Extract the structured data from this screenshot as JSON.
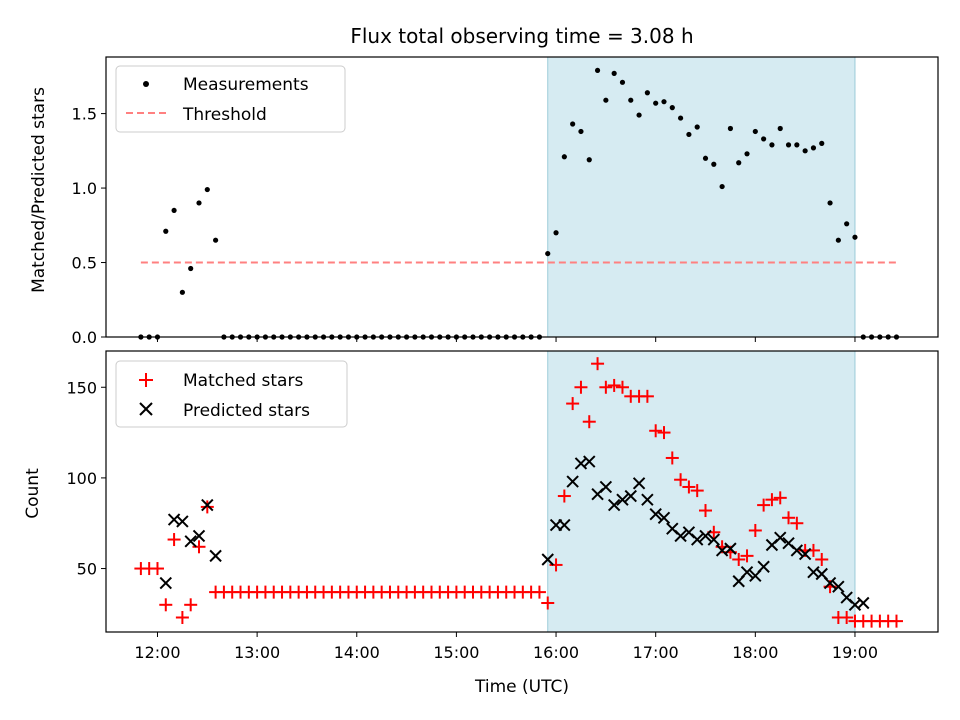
{
  "title": "Flux total observing time = 3.08 h",
  "colors": {
    "measurements": "#000000",
    "threshold": "#ff8080",
    "matched": "#ff0000",
    "predicted": "#000000",
    "observing_span": "#add8e6"
  },
  "chart_data": [
    {
      "type": "scatter",
      "ylabel": "Matched/Predicted stars",
      "xlim": [
        "11:29",
        "19:50"
      ],
      "ylim": [
        0,
        1.88
      ],
      "yticks": [
        "0.0",
        "0.5",
        "1.0",
        "1.5"
      ],
      "grid": false,
      "legend_position": "top-left",
      "observing_span": [
        "15:55",
        "19:00"
      ],
      "threshold": {
        "name": "Threshold",
        "y": 0.5,
        "x_range": [
          "11:50",
          "19:25"
        ]
      },
      "series": [
        {
          "name": "Measurements",
          "points": [
            [
              "11:50",
              0
            ],
            [
              "11:55",
              0
            ],
            [
              "12:00",
              0
            ],
            [
              "12:05",
              0.71
            ],
            [
              "12:10",
              0.85
            ],
            [
              "12:15",
              0.3
            ],
            [
              "12:20",
              0.46
            ],
            [
              "12:25",
              0.9
            ],
            [
              "12:30",
              0.99
            ],
            [
              "12:35",
              0.65
            ],
            [
              "12:40",
              0
            ],
            [
              "12:45",
              0
            ],
            [
              "12:50",
              0
            ],
            [
              "12:55",
              0
            ],
            [
              "13:00",
              0
            ],
            [
              "13:05",
              0
            ],
            [
              "13:10",
              0
            ],
            [
              "13:15",
              0
            ],
            [
              "13:20",
              0
            ],
            [
              "13:25",
              0
            ],
            [
              "13:30",
              0
            ],
            [
              "13:35",
              0
            ],
            [
              "13:40",
              0
            ],
            [
              "13:45",
              0
            ],
            [
              "13:50",
              0
            ],
            [
              "13:55",
              0
            ],
            [
              "14:00",
              0
            ],
            [
              "14:05",
              0
            ],
            [
              "14:10",
              0
            ],
            [
              "14:15",
              0
            ],
            [
              "14:20",
              0
            ],
            [
              "14:25",
              0
            ],
            [
              "14:30",
              0
            ],
            [
              "14:35",
              0
            ],
            [
              "14:40",
              0
            ],
            [
              "14:45",
              0
            ],
            [
              "14:50",
              0
            ],
            [
              "14:55",
              0
            ],
            [
              "15:00",
              0
            ],
            [
              "15:05",
              0
            ],
            [
              "15:10",
              0
            ],
            [
              "15:15",
              0
            ],
            [
              "15:20",
              0
            ],
            [
              "15:25",
              0
            ],
            [
              "15:30",
              0
            ],
            [
              "15:35",
              0
            ],
            [
              "15:40",
              0
            ],
            [
              "15:45",
              0
            ],
            [
              "15:50",
              0
            ],
            [
              "15:55",
              0.56
            ],
            [
              "16:00",
              0.7
            ],
            [
              "16:05",
              1.21
            ],
            [
              "16:10",
              1.43
            ],
            [
              "16:15",
              1.38
            ],
            [
              "16:20",
              1.19
            ],
            [
              "16:25",
              1.79
            ],
            [
              "16:30",
              1.59
            ],
            [
              "16:35",
              1.77
            ],
            [
              "16:40",
              1.71
            ],
            [
              "16:45",
              1.59
            ],
            [
              "16:50",
              1.49
            ],
            [
              "16:55",
              1.64
            ],
            [
              "17:00",
              1.57
            ],
            [
              "17:05",
              1.58
            ],
            [
              "17:10",
              1.54
            ],
            [
              "17:15",
              1.47
            ],
            [
              "17:20",
              1.36
            ],
            [
              "17:25",
              1.41
            ],
            [
              "17:30",
              1.2
            ],
            [
              "17:35",
              1.16
            ],
            [
              "17:40",
              1.01
            ],
            [
              "17:45",
              1.4
            ],
            [
              "17:50",
              1.17
            ],
            [
              "17:55",
              1.23
            ],
            [
              "18:00",
              1.38
            ],
            [
              "18:05",
              1.33
            ],
            [
              "18:10",
              1.29
            ],
            [
              "18:15",
              1.4
            ],
            [
              "18:20",
              1.29
            ],
            [
              "18:25",
              1.29
            ],
            [
              "18:30",
              1.25
            ],
            [
              "18:35",
              1.27
            ],
            [
              "18:40",
              1.3
            ],
            [
              "18:45",
              0.9
            ],
            [
              "18:50",
              0.65
            ],
            [
              "18:55",
              0.76
            ],
            [
              "19:00",
              0.67
            ],
            [
              "19:05",
              0
            ],
            [
              "19:10",
              0
            ],
            [
              "19:15",
              0
            ],
            [
              "19:20",
              0
            ],
            [
              "19:25",
              0
            ]
          ]
        }
      ]
    },
    {
      "type": "scatter",
      "ylabel": "Count",
      "xlabel": "Time (UTC)",
      "xlim": [
        "11:29",
        "19:50"
      ],
      "ylim": [
        15,
        170
      ],
      "yticks": [
        "50",
        "100",
        "150"
      ],
      "xticks": [
        "12:00",
        "13:00",
        "14:00",
        "15:00",
        "16:00",
        "17:00",
        "18:00",
        "19:00"
      ],
      "grid": false,
      "legend_position": "top-left",
      "observing_span": [
        "15:55",
        "19:00"
      ],
      "series": [
        {
          "name": "Matched stars",
          "marker": "+",
          "points": [
            [
              "11:50",
              50
            ],
            [
              "11:55",
              50
            ],
            [
              "12:00",
              50
            ],
            [
              "12:05",
              30
            ],
            [
              "12:10",
              66
            ],
            [
              "12:15",
              23
            ],
            [
              "12:20",
              30
            ],
            [
              "12:25",
              62
            ],
            [
              "12:30",
              84
            ],
            [
              "12:35",
              37
            ],
            [
              "12:40",
              37
            ],
            [
              "12:45",
              37
            ],
            [
              "12:50",
              37
            ],
            [
              "12:55",
              37
            ],
            [
              "13:00",
              37
            ],
            [
              "13:05",
              37
            ],
            [
              "13:10",
              37
            ],
            [
              "13:15",
              37
            ],
            [
              "13:20",
              37
            ],
            [
              "13:25",
              37
            ],
            [
              "13:30",
              37
            ],
            [
              "13:35",
              37
            ],
            [
              "13:40",
              37
            ],
            [
              "13:45",
              37
            ],
            [
              "13:50",
              37
            ],
            [
              "13:55",
              37
            ],
            [
              "14:00",
              37
            ],
            [
              "14:05",
              37
            ],
            [
              "14:10",
              37
            ],
            [
              "14:15",
              37
            ],
            [
              "14:20",
              37
            ],
            [
              "14:25",
              37
            ],
            [
              "14:30",
              37
            ],
            [
              "14:35",
              37
            ],
            [
              "14:40",
              37
            ],
            [
              "14:45",
              37
            ],
            [
              "14:50",
              37
            ],
            [
              "14:55",
              37
            ],
            [
              "15:00",
              37
            ],
            [
              "15:05",
              37
            ],
            [
              "15:10",
              37
            ],
            [
              "15:15",
              37
            ],
            [
              "15:20",
              37
            ],
            [
              "15:25",
              37
            ],
            [
              "15:30",
              37
            ],
            [
              "15:35",
              37
            ],
            [
              "15:40",
              37
            ],
            [
              "15:45",
              37
            ],
            [
              "15:50",
              37
            ],
            [
              "15:55",
              31
            ],
            [
              "16:00",
              52
            ],
            [
              "16:05",
              90
            ],
            [
              "16:10",
              141
            ],
            [
              "16:15",
              150
            ],
            [
              "16:20",
              131
            ],
            [
              "16:25",
              163
            ],
            [
              "16:30",
              150
            ],
            [
              "16:35",
              151
            ],
            [
              "16:40",
              150
            ],
            [
              "16:45",
              145
            ],
            [
              "16:50",
              145
            ],
            [
              "16:55",
              145
            ],
            [
              "17:00",
              126
            ],
            [
              "17:05",
              125
            ],
            [
              "17:10",
              111
            ],
            [
              "17:15",
              99
            ],
            [
              "17:20",
              95
            ],
            [
              "17:25",
              93
            ],
            [
              "17:30",
              82
            ],
            [
              "17:35",
              70
            ],
            [
              "17:40",
              62
            ],
            [
              "17:45",
              59
            ],
            [
              "17:50",
              55
            ],
            [
              "17:55",
              57
            ],
            [
              "18:00",
              71
            ],
            [
              "18:05",
              85
            ],
            [
              "18:10",
              88
            ],
            [
              "18:15",
              89
            ],
            [
              "18:20",
              78
            ],
            [
              "18:25",
              75
            ],
            [
              "18:30",
              60
            ],
            [
              "18:35",
              60
            ],
            [
              "18:40",
              55
            ],
            [
              "18:45",
              40
            ],
            [
              "18:50",
              23
            ],
            [
              "18:55",
              23
            ],
            [
              "19:00",
              21
            ],
            [
              "19:05",
              21
            ],
            [
              "19:10",
              21
            ],
            [
              "19:15",
              21
            ],
            [
              "19:20",
              21
            ],
            [
              "19:25",
              21
            ]
          ]
        },
        {
          "name": "Predicted stars",
          "marker": "x",
          "points": [
            [
              "12:05",
              42
            ],
            [
              "12:10",
              77
            ],
            [
              "12:15",
              76
            ],
            [
              "12:20",
              65
            ],
            [
              "12:25",
              68
            ],
            [
              "12:30",
              85
            ],
            [
              "12:35",
              57
            ],
            [
              "15:55",
              55
            ],
            [
              "16:00",
              74
            ],
            [
              "16:05",
              74
            ],
            [
              "16:10",
              98
            ],
            [
              "16:15",
              108
            ],
            [
              "16:20",
              109
            ],
            [
              "16:25",
              91
            ],
            [
              "16:30",
              95
            ],
            [
              "16:35",
              85
            ],
            [
              "16:40",
              88
            ],
            [
              "16:45",
              90
            ],
            [
              "16:50",
              97
            ],
            [
              "16:55",
              88
            ],
            [
              "17:00",
              80
            ],
            [
              "17:05",
              78
            ],
            [
              "17:10",
              72
            ],
            [
              "17:15",
              68
            ],
            [
              "17:20",
              70
            ],
            [
              "17:25",
              66
            ],
            [
              "17:30",
              68
            ],
            [
              "17:35",
              66
            ],
            [
              "17:40",
              60
            ],
            [
              "17:45",
              61
            ],
            [
              "17:50",
              43
            ],
            [
              "17:55",
              48
            ],
            [
              "18:00",
              46
            ],
            [
              "18:05",
              51
            ],
            [
              "18:10",
              63
            ],
            [
              "18:15",
              67
            ],
            [
              "18:20",
              64
            ],
            [
              "18:25",
              60
            ],
            [
              "18:30",
              58
            ],
            [
              "18:35",
              48
            ],
            [
              "18:40",
              47
            ],
            [
              "18:45",
              42
            ],
            [
              "18:50",
              40
            ],
            [
              "18:55",
              34
            ],
            [
              "19:00",
              30
            ],
            [
              "19:05",
              31
            ]
          ]
        }
      ]
    }
  ]
}
